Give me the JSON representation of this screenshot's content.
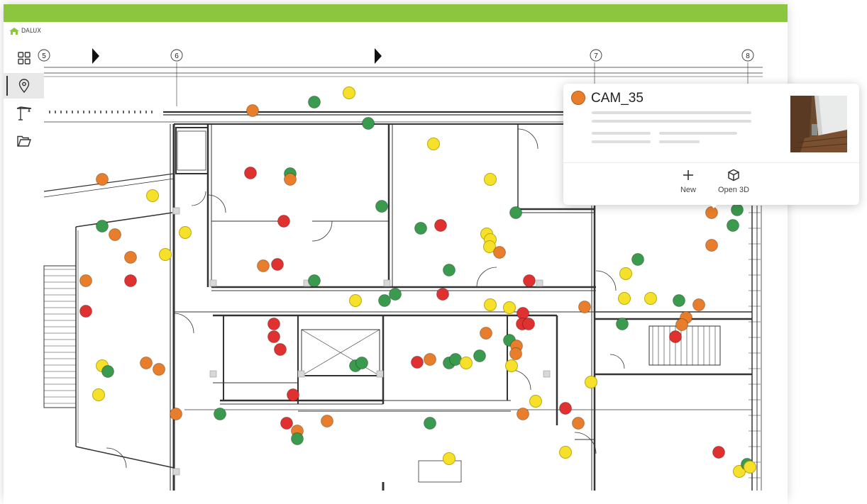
{
  "app": {
    "logo_text": "DALUX",
    "brand_color": "#8cc63e"
  },
  "sidebar": {
    "items": [
      {
        "icon": "grid-icon",
        "active": false
      },
      {
        "icon": "location-pin-icon",
        "active": true
      },
      {
        "icon": "crane-icon",
        "active": false
      },
      {
        "icon": "folder-icon",
        "active": false
      }
    ]
  },
  "plan": {
    "grid_labels": [
      "5",
      "6",
      "7",
      "8"
    ],
    "status_colors": {
      "red": "#e03131",
      "orange": "#e87e2b",
      "yellow": "#f5e12a",
      "green": "#3a9a4d"
    }
  },
  "popup": {
    "title": "CAM_35",
    "status": "orange",
    "actions": [
      {
        "label": "New",
        "icon": "plus-icon"
      },
      {
        "label": "Open 3D",
        "icon": "cube-icon"
      }
    ]
  }
}
